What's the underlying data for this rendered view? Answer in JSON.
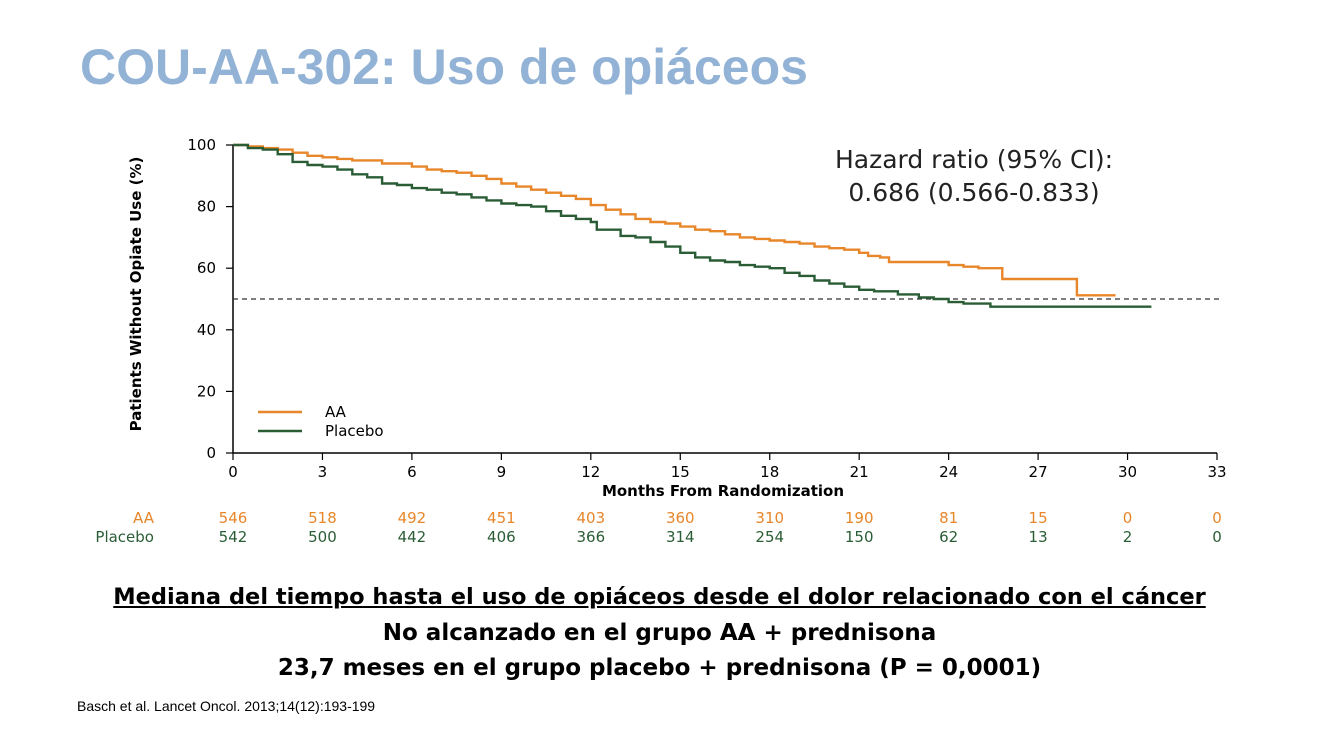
{
  "slide": {
    "title": "COU-AA-302: Uso de opiáceos",
    "summary_heading": "Mediana del tiempo hasta el uso de opiáceos desde el dolor relacionado con el cáncer",
    "summary_lines": [
      "No alcanzado en el grupo AA + prednisona",
      "23,7 meses en el grupo placebo + prednisona (P = 0,0001)"
    ],
    "citation": "Basch et al. Lancet Oncol. 2013;14(12):193-199"
  },
  "chart_data": {
    "type": "line",
    "step": true,
    "xlabel": "Months From Randomization",
    "ylabel": "Patients Without Opiate Use (%)",
    "xlim": [
      0,
      33
    ],
    "ylim": [
      0,
      100
    ],
    "xticks": [
      0,
      3,
      6,
      9,
      12,
      15,
      18,
      21,
      24,
      27,
      30,
      33
    ],
    "yticks": [
      0,
      20,
      40,
      60,
      80,
      100
    ],
    "grid": false,
    "legend_position": "bottom-left",
    "reference_line_y": 50,
    "annotation": [
      "Hazard ratio (95% CI):",
      "0.686 (0.566-0.833)"
    ],
    "series": [
      {
        "name": "AA",
        "color": "#e8862a",
        "points": [
          [
            0,
            100
          ],
          [
            0.5,
            99.5
          ],
          [
            1,
            99
          ],
          [
            1.5,
            98.5
          ],
          [
            2,
            97.5
          ],
          [
            2.5,
            96.5
          ],
          [
            3,
            96
          ],
          [
            3.5,
            95.5
          ],
          [
            4,
            95
          ],
          [
            4.5,
            95
          ],
          [
            5,
            94
          ],
          [
            5.5,
            94
          ],
          [
            6,
            93
          ],
          [
            6.5,
            92
          ],
          [
            7,
            91.5
          ],
          [
            7.5,
            91
          ],
          [
            8,
            90
          ],
          [
            8.5,
            89
          ],
          [
            9,
            87.5
          ],
          [
            9.5,
            86.5
          ],
          [
            10,
            85.5
          ],
          [
            10.5,
            84.5
          ],
          [
            11,
            83.5
          ],
          [
            11.5,
            82.5
          ],
          [
            12,
            80.5
          ],
          [
            12.5,
            79
          ],
          [
            13,
            77.5
          ],
          [
            13.5,
            76
          ],
          [
            14,
            75
          ],
          [
            14.5,
            74.5
          ],
          [
            15,
            73.5
          ],
          [
            15.5,
            72.5
          ],
          [
            16,
            72
          ],
          [
            16.5,
            71
          ],
          [
            17,
            70
          ],
          [
            17.5,
            69.5
          ],
          [
            18,
            69
          ],
          [
            18.5,
            68.5
          ],
          [
            19,
            68
          ],
          [
            19.5,
            67
          ],
          [
            20,
            66.5
          ],
          [
            20.5,
            66
          ],
          [
            21,
            65
          ],
          [
            21.3,
            64
          ],
          [
            21.7,
            63.5
          ],
          [
            22,
            62
          ],
          [
            23,
            62
          ],
          [
            23.5,
            62
          ],
          [
            24,
            61
          ],
          [
            24.5,
            60.5
          ],
          [
            25,
            60
          ],
          [
            25.7,
            60
          ],
          [
            25.8,
            56.5
          ],
          [
            28.2,
            56.5
          ],
          [
            28.3,
            51.2
          ],
          [
            29.6,
            51.2
          ]
        ]
      },
      {
        "name": "Placebo",
        "color": "#2a5d36",
        "points": [
          [
            0,
            100
          ],
          [
            0.5,
            99
          ],
          [
            1,
            98.5
          ],
          [
            1.5,
            97
          ],
          [
            2,
            94.5
          ],
          [
            2.5,
            93.5
          ],
          [
            3,
            93
          ],
          [
            3.5,
            92
          ],
          [
            4,
            90.5
          ],
          [
            4.5,
            89.5
          ],
          [
            5,
            87.5
          ],
          [
            5.5,
            87
          ],
          [
            6,
            86
          ],
          [
            6.5,
            85.5
          ],
          [
            7,
            84.5
          ],
          [
            7.5,
            84
          ],
          [
            8,
            83
          ],
          [
            8.5,
            82
          ],
          [
            9,
            81
          ],
          [
            9.5,
            80.5
          ],
          [
            10,
            80
          ],
          [
            10.5,
            78.5
          ],
          [
            11,
            77
          ],
          [
            11.5,
            76
          ],
          [
            12,
            75
          ],
          [
            12.2,
            72.5
          ],
          [
            13,
            70.5
          ],
          [
            13.5,
            70
          ],
          [
            14,
            68.5
          ],
          [
            14.5,
            67
          ],
          [
            15,
            65
          ],
          [
            15.5,
            63.5
          ],
          [
            16,
            62.5
          ],
          [
            16.5,
            62
          ],
          [
            17,
            61
          ],
          [
            17.5,
            60.5
          ],
          [
            18,
            60
          ],
          [
            18.5,
            58.5
          ],
          [
            19,
            57.5
          ],
          [
            19.5,
            56
          ],
          [
            20,
            55
          ],
          [
            20.5,
            54
          ],
          [
            21,
            53
          ],
          [
            21.5,
            52.5
          ],
          [
            22,
            52.5
          ],
          [
            22.3,
            51.5
          ],
          [
            23,
            50.5
          ],
          [
            23.5,
            50
          ],
          [
            24,
            49
          ],
          [
            24.5,
            48.5
          ],
          [
            25,
            48.5
          ],
          [
            25.3,
            48.5
          ],
          [
            25.4,
            47.5
          ],
          [
            30.8,
            47.5
          ]
        ]
      }
    ],
    "risk_table": {
      "timepoints": [
        0,
        3,
        6,
        9,
        12,
        15,
        18,
        21,
        24,
        27,
        30,
        33
      ],
      "rows": [
        {
          "name": "AA",
          "color": "#e8862a",
          "values": [
            546,
            518,
            492,
            451,
            403,
            360,
            310,
            190,
            81,
            15,
            0,
            0
          ]
        },
        {
          "name": "Placebo",
          "color": "#2a5d36",
          "values": [
            542,
            500,
            442,
            406,
            366,
            314,
            254,
            150,
            62,
            13,
            2,
            0
          ]
        }
      ]
    }
  }
}
